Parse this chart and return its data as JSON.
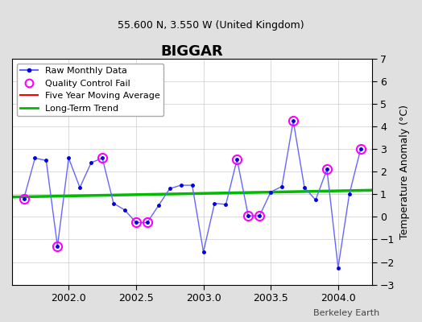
{
  "title": "BIGGAR",
  "subtitle": "55.600 N, 3.550 W (United Kingdom)",
  "ylabel": "Temperature Anomaly (°C)",
  "watermark": "Berkeley Earth",
  "xlim": [
    2001.58,
    2004.25
  ],
  "ylim": [
    -3,
    7
  ],
  "yticks": [
    -3,
    -2,
    -1,
    0,
    1,
    2,
    3,
    4,
    5,
    6,
    7
  ],
  "xticks": [
    2002,
    2002.5,
    2003,
    2003.5,
    2004
  ],
  "bg_color": "#e0e0e0",
  "plot_bg_color": "#ffffff",
  "raw_x": [
    2001.667,
    2001.75,
    2001.833,
    2001.917,
    2002.0,
    2002.083,
    2002.167,
    2002.25,
    2002.333,
    2002.417,
    2002.5,
    2002.583,
    2002.667,
    2002.75,
    2002.833,
    2002.917,
    2003.0,
    2003.083,
    2003.167,
    2003.25,
    2003.333,
    2003.417,
    2003.5,
    2003.583,
    2003.667,
    2003.75,
    2003.833,
    2003.917,
    2004.0,
    2004.083,
    2004.167
  ],
  "raw_y": [
    0.8,
    2.6,
    2.5,
    -1.3,
    2.6,
    1.3,
    2.4,
    2.6,
    0.6,
    0.3,
    -0.25,
    -0.25,
    0.5,
    1.25,
    1.4,
    1.4,
    -1.55,
    0.6,
    0.55,
    2.55,
    0.05,
    0.05,
    1.1,
    1.35,
    4.25,
    1.3,
    0.75,
    2.1,
    -2.25,
    1.0,
    3.0
  ],
  "qc_fail_x": [
    2001.667,
    2001.917,
    2002.25,
    2002.5,
    2002.583,
    2003.25,
    2003.333,
    2003.417,
    2003.667,
    2003.917,
    2004.167
  ],
  "qc_fail_y": [
    0.8,
    -1.3,
    2.6,
    -0.25,
    -0.25,
    2.55,
    0.05,
    0.05,
    4.25,
    2.1,
    3.0
  ],
  "trend_x": [
    2001.58,
    2004.25
  ],
  "trend_y": [
    0.88,
    1.18
  ],
  "raw_color": "#0000dd",
  "raw_line_color": "#6666ff",
  "qc_color": "#ff00ff",
  "trend_color": "#00bb00",
  "mavg_color": "#ff0000"
}
